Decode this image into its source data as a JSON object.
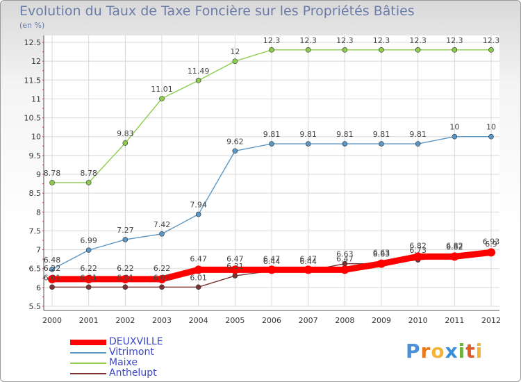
{
  "header": {
    "title": "Evolution du Taux de Taxe Foncière sur les Propriétés Bâties",
    "unit": "(en %)"
  },
  "colors": {
    "DEUXVILLE": "#ff0000",
    "Vitrimont": "#5b96c4",
    "Maixe": "#8ccc4a",
    "Anthelupt": "#7a3232",
    "grid": "#d8d8d8",
    "axis_text": "#333333"
  },
  "chart_data": {
    "type": "line",
    "title": "Evolution du Taux de Taxe Foncière sur les Propriétés Bâties",
    "ylabel": "(en %)",
    "xlabel": "",
    "x": [
      "2000",
      "2001",
      "2002",
      "2003",
      "2004",
      "2005",
      "2006",
      "2007",
      "2008",
      "2009",
      "2010",
      "2011",
      "2012"
    ],
    "ylim": [
      5.5,
      12.5
    ],
    "yticks": [
      "5.5",
      "6",
      "6.5",
      "7",
      "7.5",
      "8",
      "8.5",
      "9",
      "9.5",
      "10",
      "10.5",
      "11",
      "11.5",
      "12",
      "12.5"
    ],
    "grid": true,
    "legend_position": "bottom-left",
    "series": [
      {
        "name": "DEUXVILLE",
        "values": [
          6.22,
          6.22,
          6.22,
          6.22,
          6.47,
          6.47,
          6.47,
          6.47,
          6.47,
          6.63,
          6.82,
          6.82,
          6.93
        ],
        "labels": [
          "6.22",
          "6.22",
          "6.22",
          "6.22",
          "6.47",
          "6.47",
          "6.47",
          "6.47",
          "6.47",
          "6.63",
          "6.82",
          "6.82",
          "6.93"
        ]
      },
      {
        "name": "Vitrimont",
        "values": [
          6.48,
          6.99,
          7.27,
          7.42,
          7.94,
          9.62,
          9.81,
          9.81,
          9.81,
          9.81,
          9.81,
          10,
          10
        ],
        "labels": [
          "6.48",
          "6.99",
          "7.27",
          "7.42",
          "7.94",
          "9.62",
          "9.81",
          "9.81",
          "9.81",
          "9.81",
          "9.81",
          "10",
          "10"
        ]
      },
      {
        "name": "Maixe",
        "values": [
          8.78,
          8.78,
          9.83,
          11.01,
          11.49,
          12,
          12.3,
          12.3,
          12.3,
          12.3,
          12.3,
          12.3,
          12.3
        ],
        "labels": [
          "8.78",
          "8.78",
          "9.83",
          "11.01",
          "11.49",
          "12",
          "12.3",
          "12.3",
          "12.3",
          "12.3",
          "12.3",
          "12.3",
          "12.3"
        ]
      },
      {
        "name": "Anthelupt",
        "values": [
          6.01,
          6.01,
          6.01,
          6.01,
          6.01,
          6.31,
          6.44,
          6.44,
          6.63,
          6.63,
          6.73,
          6.82,
          6.9
        ],
        "labels": [
          "6.01",
          "6.01",
          "6.01",
          "6.01",
          "6.01",
          "6.31",
          "6.44",
          "6.44",
          "6.63",
          "6.63",
          "6.73",
          "6.82",
          "6.9"
        ]
      }
    ]
  },
  "legend": {
    "items": [
      "DEUXVILLE",
      "Vitrimont",
      "Maixe",
      "Anthelupt"
    ]
  },
  "logo": {
    "letters": [
      "P",
      "r",
      "o",
      "x",
      "i",
      "t",
      "i"
    ],
    "colors": [
      "#4a90d9",
      "#e87a1c",
      "#f2b53a",
      "#3a8fd9",
      "#6bb33c",
      "#e05a2a",
      "#f2b53a"
    ]
  }
}
